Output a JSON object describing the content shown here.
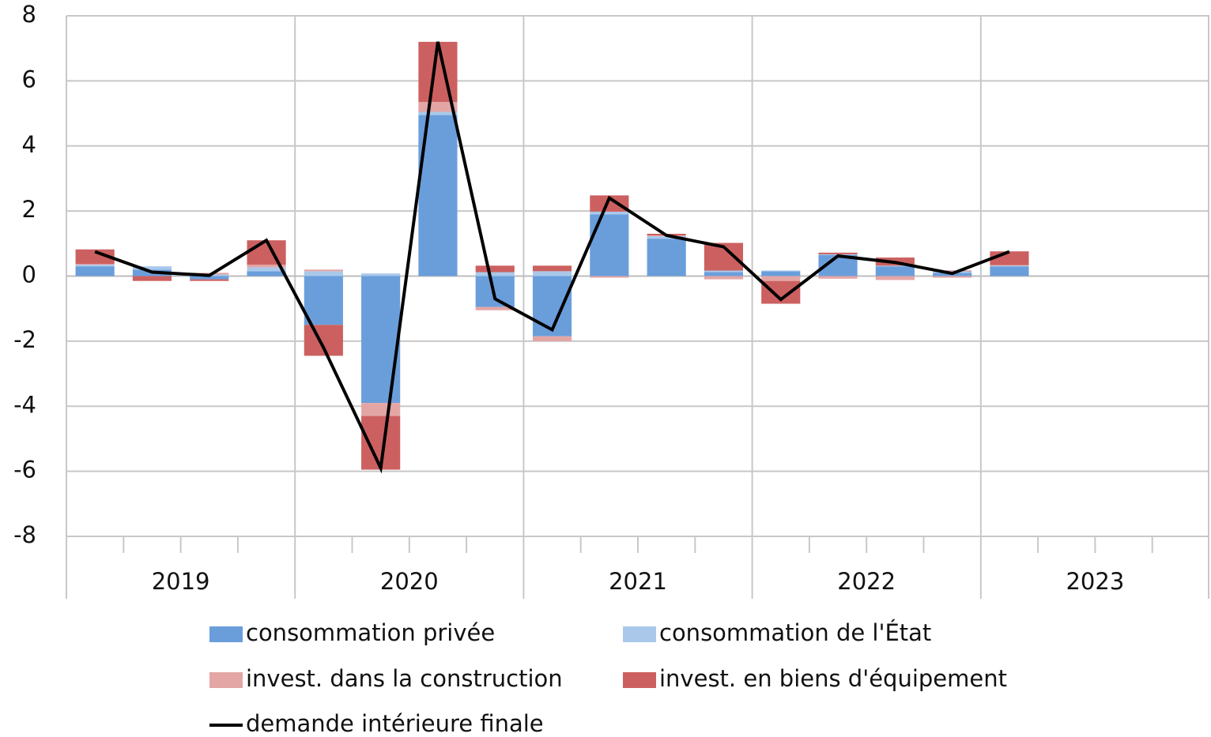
{
  "chart_data": {
    "type": "bar_line",
    "categories": [
      null,
      null,
      null,
      null,
      null,
      null,
      null,
      null,
      null,
      null,
      null,
      null,
      null,
      null,
      null,
      null,
      null,
      null,
      null,
      null
    ],
    "groups": [
      "2019",
      "2020",
      "2021",
      "2022",
      "2023"
    ],
    "series": [
      {
        "name": "consommation privée",
        "color": "#6a9edb",
        "kind": "bar",
        "values": [
          0.3,
          0.2,
          -0.1,
          0.15,
          -1.5,
          -3.9,
          4.95,
          -0.95,
          -1.85,
          1.9,
          1.15,
          0.12,
          0.15,
          0.65,
          0.3,
          0.1,
          0.3,
          null,
          null,
          null
        ]
      },
      {
        "name": "consommation de l'État",
        "color": "#a9c8ea",
        "kind": "bar",
        "values": [
          0.05,
          0.1,
          0.05,
          0.12,
          0.15,
          0.08,
          0.1,
          0.12,
          0.15,
          0.08,
          0.08,
          0.05,
          0.02,
          0.02,
          0.02,
          0.05,
          0.02,
          null,
          null,
          null
        ]
      },
      {
        "name": "invest. dans la construction",
        "color": "#e4a5a5",
        "kind": "bar",
        "values": [
          0.02,
          0.0,
          0.05,
          0.08,
          0.05,
          -0.4,
          0.3,
          -0.1,
          -0.15,
          -0.05,
          0.02,
          -0.1,
          -0.15,
          -0.08,
          -0.12,
          -0.05,
          0.02,
          null,
          null,
          null
        ]
      },
      {
        "name": "invest. en biens d'équipement",
        "color": "#cc6060",
        "kind": "bar",
        "values": [
          0.45,
          -0.15,
          -0.05,
          0.75,
          -0.95,
          -1.65,
          1.85,
          0.2,
          0.17,
          0.5,
          0.05,
          0.85,
          -0.7,
          0.05,
          0.25,
          0.02,
          0.42,
          null,
          null,
          null
        ]
      },
      {
        "name": "demande intérieure finale",
        "color": "#000000",
        "kind": "line",
        "values": [
          0.75,
          0.12,
          0.02,
          1.1,
          -2.2,
          -5.9,
          7.2,
          -0.7,
          -1.65,
          2.4,
          1.25,
          0.9,
          -0.72,
          0.62,
          0.42,
          0.08,
          0.75,
          null,
          null,
          null
        ]
      }
    ],
    "ylim": [
      -8,
      8
    ],
    "yticks": [
      -8,
      -6,
      -4,
      -2,
      0,
      2,
      4,
      6,
      8
    ],
    "grid": true
  }
}
